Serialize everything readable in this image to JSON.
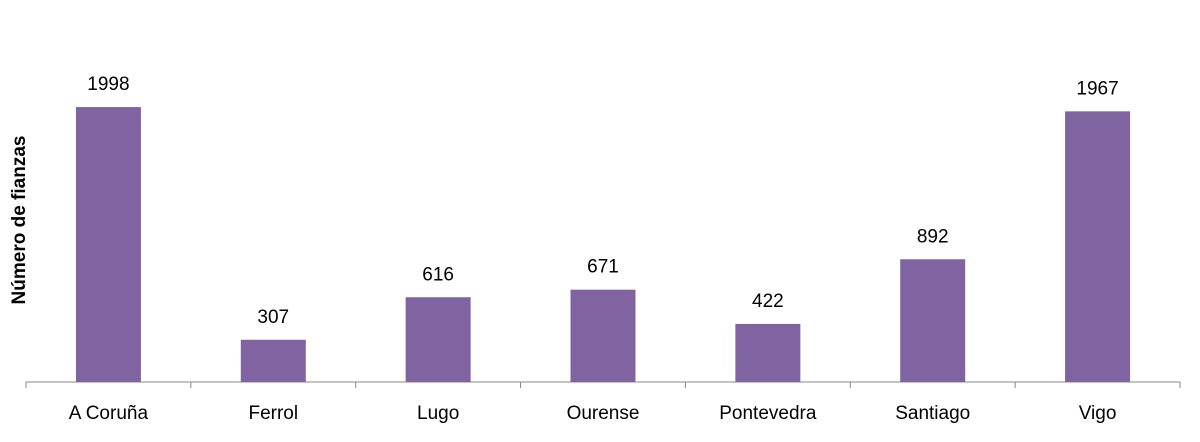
{
  "chart_data": {
    "type": "bar",
    "y_label": "Número de fianzas",
    "categories": [
      "A Coruña",
      "Ferrol",
      "Lugo",
      "Ourense",
      "Pontevedra",
      "Santiago",
      "Vigo"
    ],
    "values": [
      1998,
      307,
      616,
      671,
      422,
      892,
      1967
    ],
    "color": "#8064a2",
    "ylim": [
      0,
      2500
    ],
    "grid": false
  }
}
